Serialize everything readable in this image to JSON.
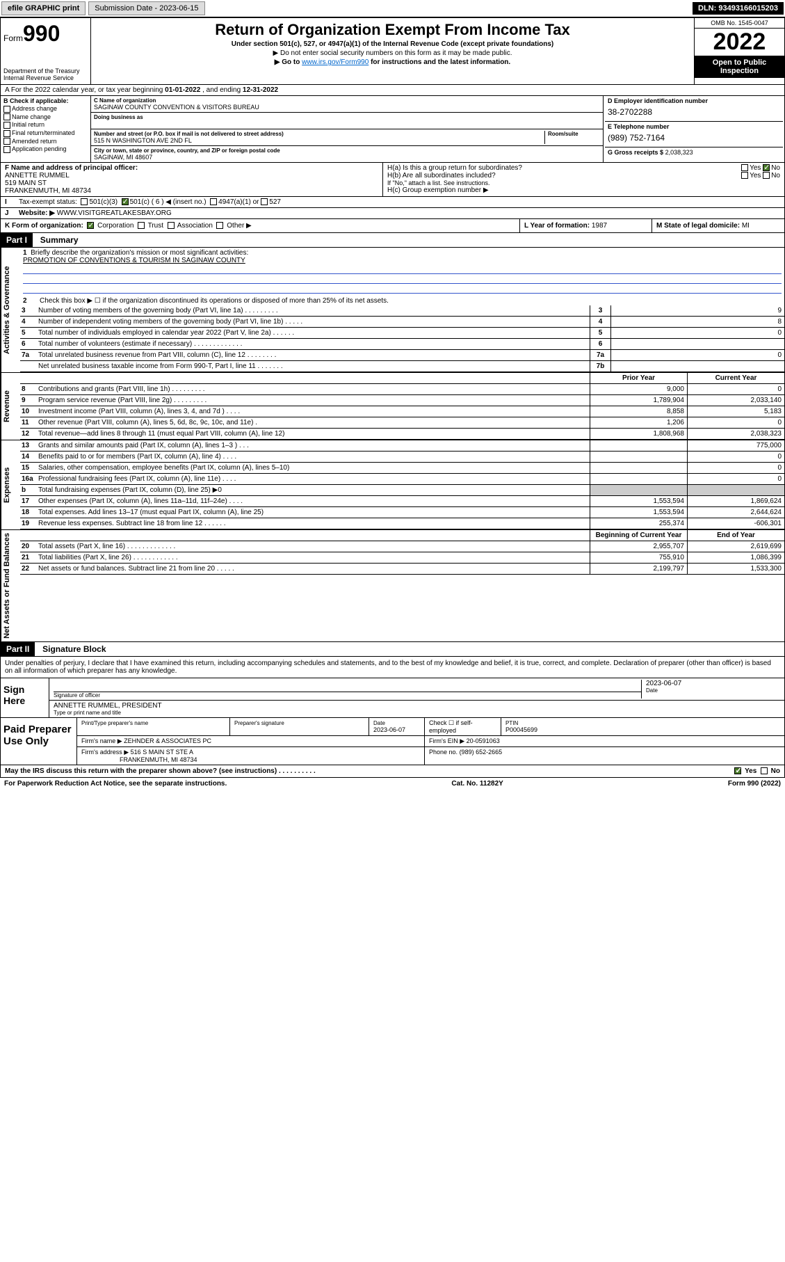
{
  "topbar": {
    "efile": "efile GRAPHIC print",
    "submission": "Submission Date - 2023-06-15",
    "dln": "DLN: 93493166015203"
  },
  "header": {
    "form": "Form",
    "formno": "990",
    "title": "Return of Organization Exempt From Income Tax",
    "sub1": "Under section 501(c), 527, or 4947(a)(1) of the Internal Revenue Code (except private foundations)",
    "sub2": "▶ Do not enter social security numbers on this form as it may be made public.",
    "sub3_pre": "▶ Go to ",
    "sub3_link": "www.irs.gov/Form990",
    "sub3_post": " for instructions and the latest information.",
    "dept": "Department of the Treasury",
    "irs": "Internal Revenue Service",
    "omb": "OMB No. 1545-0047",
    "year": "2022",
    "open": "Open to Public Inspection"
  },
  "rowA": {
    "text_pre": "A For the 2022 calendar year, or tax year beginning ",
    "begin": "01-01-2022",
    "mid": " , and ending ",
    "end": "12-31-2022"
  },
  "colB": {
    "label": "B Check if applicable:",
    "items": [
      "Address change",
      "Name change",
      "Initial return",
      "Final return/terminated",
      "Amended return",
      "Application pending"
    ]
  },
  "colC": {
    "name_lbl": "C Name of organization",
    "name": "SAGINAW COUNTY CONVENTION & VISITORS BUREAU",
    "dba_lbl": "Doing business as",
    "addr_lbl": "Number and street (or P.O. box if mail is not delivered to street address)",
    "room_lbl": "Room/suite",
    "addr": "515 N WASHINGTON AVE 2ND FL",
    "city_lbl": "City or town, state or province, country, and ZIP or foreign postal code",
    "city": "SAGINAW, MI  48607"
  },
  "colD": {
    "ein_lbl": "D Employer identification number",
    "ein": "38-2702288",
    "phone_lbl": "E Telephone number",
    "phone": "(989) 752-7164",
    "gross_lbl": "G Gross receipts $",
    "gross": "2,038,323"
  },
  "rowF": {
    "lbl": "F Name and address of principal officer:",
    "name": "ANNETTE RUMMEL",
    "addr1": "519 MAIN ST",
    "addr2": "FRANKENMUTH, MI  48734"
  },
  "rowH": {
    "ha": "H(a)  Is this a group return for subordinates?",
    "hb": "H(b)  Are all subordinates included?",
    "hb_note": "If \"No,\" attach a list. See instructions.",
    "hc": "H(c)  Group exemption number ▶"
  },
  "rowI": {
    "lbl": "Tax-exempt status:",
    "c3": "501(c)(3)",
    "c": "501(c) ( 6 ) ◀ (insert no.)",
    "a1": "4947(a)(1) or",
    "s527": "527"
  },
  "rowJ": {
    "lbl": "Website: ▶",
    "val": "WWW.VISITGREATLAKESBAY.ORG"
  },
  "rowK": {
    "lbl": "K Form of organization:",
    "corp": "Corporation",
    "trust": "Trust",
    "assoc": "Association",
    "other": "Other ▶",
    "year_lbl": "L Year of formation:",
    "year": "1987",
    "state_lbl": "M State of legal domicile:",
    "state": "MI"
  },
  "part1": {
    "head": "Part I",
    "title": "Summary",
    "tab_ag": "Activities & Governance",
    "tab_rev": "Revenue",
    "tab_exp": "Expenses",
    "tab_na": "Net Assets or Fund Balances",
    "l1": "Briefly describe the organization's mission or most significant activities:",
    "mission": "PROMOTION OF CONVENTIONS & TOURISM IN SAGINAW COUNTY",
    "l2": "Check this box ▶ ☐  if the organization discontinued its operations or disposed of more than 25% of its net assets.",
    "lines_ag": [
      {
        "n": "3",
        "t": "Number of voting members of the governing body (Part VI, line 1a)  .   .   .   .   .   .   .   .   .",
        "b": "3",
        "v": "9"
      },
      {
        "n": "4",
        "t": "Number of independent voting members of the governing body (Part VI, line 1b)  .   .   .   .   .",
        "b": "4",
        "v": "8"
      },
      {
        "n": "5",
        "t": "Total number of individuals employed in calendar year 2022 (Part V, line 2a)  .   .   .   .   .   .",
        "b": "5",
        "v": "0"
      },
      {
        "n": "6",
        "t": "Total number of volunteers (estimate if necessary)  .   .   .   .   .   .   .   .   .   .   .   .   .",
        "b": "6",
        "v": ""
      },
      {
        "n": "7a",
        "t": "Total unrelated business revenue from Part VIII, column (C), line 12  .   .   .   .   .   .   .   .",
        "b": "7a",
        "v": "0"
      },
      {
        "n": "",
        "t": "Net unrelated business taxable income from Form 990-T, Part I, line 11  .   .   .   .   .   .   .",
        "b": "7b",
        "v": ""
      }
    ],
    "col_prior": "Prior Year",
    "col_curr": "Current Year",
    "lines_rev": [
      {
        "n": "8",
        "t": "Contributions and grants (Part VIII, line 1h)   .   .   .   .   .   .   .   .   .",
        "p": "9,000",
        "c": "0"
      },
      {
        "n": "9",
        "t": "Program service revenue (Part VIII, line 2g)   .   .   .   .   .   .   .   .   .",
        "p": "1,789,904",
        "c": "2,033,140"
      },
      {
        "n": "10",
        "t": "Investment income (Part VIII, column (A), lines 3, 4, and 7d )   .   .   .   .",
        "p": "8,858",
        "c": "5,183"
      },
      {
        "n": "11",
        "t": "Other revenue (Part VIII, column (A), lines 5, 6d, 8c, 9c, 10c, and 11e)   .",
        "p": "1,206",
        "c": "0"
      },
      {
        "n": "12",
        "t": "Total revenue—add lines 8 through 11 (must equal Part VIII, column (A), line 12)",
        "p": "1,808,968",
        "c": "2,038,323"
      }
    ],
    "lines_exp": [
      {
        "n": "13",
        "t": "Grants and similar amounts paid (Part IX, column (A), lines 1–3 )   .   .   .",
        "p": "",
        "c": "775,000"
      },
      {
        "n": "14",
        "t": "Benefits paid to or for members (Part IX, column (A), line 4)  .   .   .   .",
        "p": "",
        "c": "0"
      },
      {
        "n": "15",
        "t": "Salaries, other compensation, employee benefits (Part IX, column (A), lines 5–10)",
        "p": "",
        "c": "0"
      },
      {
        "n": "16a",
        "t": "Professional fundraising fees (Part IX, column (A), line 11e)   .   .   .   .",
        "p": "",
        "c": "0"
      },
      {
        "n": "b",
        "t": "Total fundraising expenses (Part IX, column (D), line 25) ▶0",
        "p": "shade",
        "c": "shade"
      },
      {
        "n": "17",
        "t": "Other expenses (Part IX, column (A), lines 11a–11d, 11f–24e)   .   .   .   .",
        "p": "1,553,594",
        "c": "1,869,624"
      },
      {
        "n": "18",
        "t": "Total expenses. Add lines 13–17 (must equal Part IX, column (A), line 25)",
        "p": "1,553,594",
        "c": "2,644,624"
      },
      {
        "n": "19",
        "t": "Revenue less expenses. Subtract line 18 from line 12   .   .   .   .   .   .",
        "p": "255,374",
        "c": "-606,301"
      }
    ],
    "col_begin": "Beginning of Current Year",
    "col_end": "End of Year",
    "lines_na": [
      {
        "n": "20",
        "t": "Total assets (Part X, line 16)   .   .   .   .   .   .   .   .   .   .   .   .   .",
        "p": "2,955,707",
        "c": "2,619,699"
      },
      {
        "n": "21",
        "t": "Total liabilities (Part X, line 26)   .   .   .   .   .   .   .   .   .   .   .   .",
        "p": "755,910",
        "c": "1,086,399"
      },
      {
        "n": "22",
        "t": "Net assets or fund balances. Subtract line 21 from line 20   .   .   .   .   .",
        "p": "2,199,797",
        "c": "1,533,300"
      }
    ]
  },
  "part2": {
    "head": "Part II",
    "title": "Signature Block",
    "decl": "Under penalties of perjury, I declare that I have examined this return, including accompanying schedules and statements, and to the best of my knowledge and belief, it is true, correct, and complete. Declaration of preparer (other than officer) is based on all information of which preparer has any knowledge.",
    "sign_here": "Sign Here",
    "sig_officer": "Signature of officer",
    "sig_date": "2023-06-07",
    "date_lbl": "Date",
    "officer_name": "ANNETTE RUMMEL, PRESIDENT",
    "type_lbl": "Type or print name and title",
    "paid": "Paid Preparer Use Only",
    "prep_name_lbl": "Print/Type preparer's name",
    "prep_sig_lbl": "Preparer's signature",
    "prep_date_lbl": "Date",
    "prep_date": "2023-06-07",
    "check_lbl": "Check ☐ if self-employed",
    "ptin_lbl": "PTIN",
    "ptin": "P00045699",
    "firm_name_lbl": "Firm's name    ▶",
    "firm_name": "ZEHNDER & ASSOCIATES PC",
    "firm_ein_lbl": "Firm's EIN ▶",
    "firm_ein": "20-0591063",
    "firm_addr_lbl": "Firm's address ▶",
    "firm_addr1": "516 S MAIN ST STE A",
    "firm_addr2": "FRANKENMUTH, MI  48734",
    "phone_lbl": "Phone no.",
    "phone": "(989) 652-2665",
    "may_irs": "May the IRS discuss this return with the preparer shown above? (see instructions)   .   .   .   .   .   .   .   .   .   .",
    "yes": "Yes",
    "no": "No"
  },
  "footer": {
    "pra": "For Paperwork Reduction Act Notice, see the separate instructions.",
    "cat": "Cat. No. 11282Y",
    "form": "Form 990 (2022)"
  },
  "colors": {
    "link": "#0066cc",
    "checked": "#4a7a2a",
    "shade": "#cccccc"
  }
}
